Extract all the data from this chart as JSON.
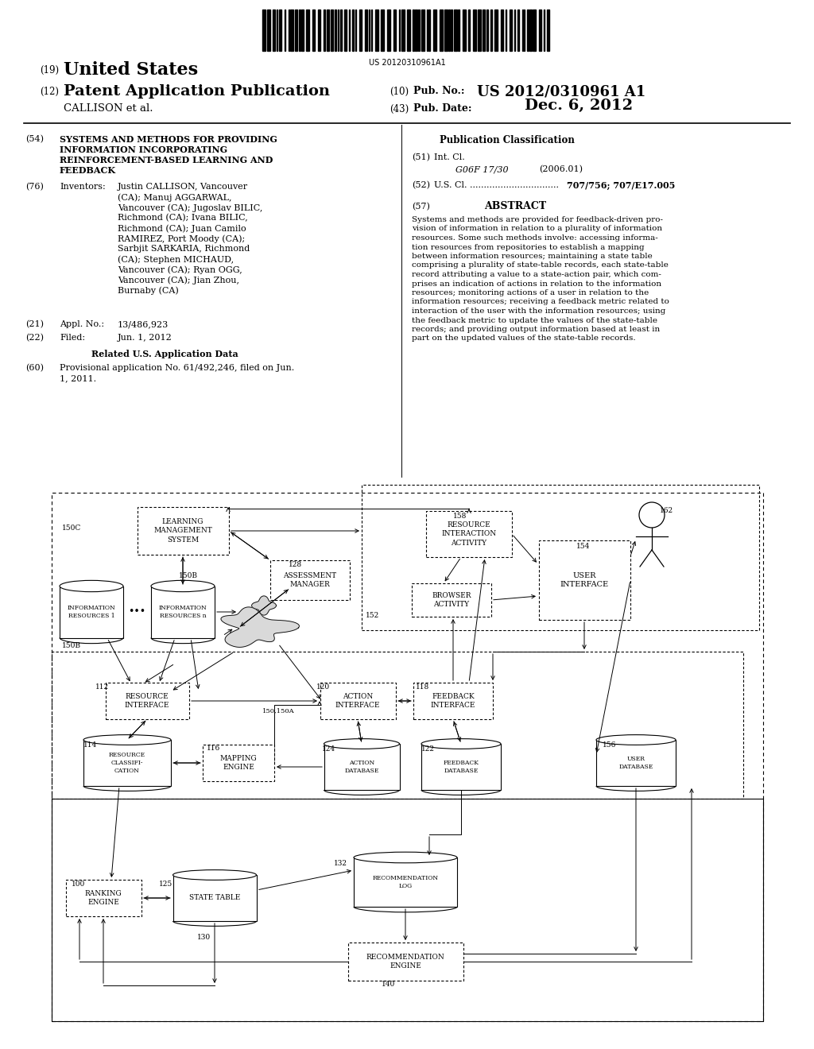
{
  "background_color": "#ffffff",
  "barcode_text": "US 20120310961A1",
  "header": {
    "country": "United States",
    "type": "Patent Application Publication",
    "pub_no": "US 2012/0310961 A1",
    "assignee": "CALLISON et al.",
    "pub_date": "Dec. 6, 2012"
  },
  "left_col": {
    "title": "SYSTEMS AND METHODS FOR PROVIDING\nINFORMATION INCORPORATING\nREINFORCEMENT-BASED LEARNING AND\nFEEDBACK",
    "inventors_text": "Justin CALLISON, Vancouver\n(CA); Manuj AGGARWAL,\nVancouver (CA); Jugoslav BILIC,\nRichmond (CA); Ivana BILIC,\nRichmond (CA); Juan Camilo\nRAMIREZ, Port Moody (CA);\nSarbjit SARKARIA, Richmond\n(CA); Stephen MICHAUD,\nVancouver (CA); Ryan OGG,\nVancouver (CA); Jian Zhou,\nBurnaby (CA)",
    "appl_no": "13/486,923",
    "filed_date": "Jun. 1, 2012",
    "provisional_text": "Provisional application No. 61/492,246, filed on Jun.\n1, 2011."
  },
  "right_col": {
    "intl_cl_code": "G06F 17/30",
    "intl_cl_year": "(2006.01)",
    "us_cl_value": "707/756; 707/E17.005",
    "abstract_text": "Systems and methods are provided for feedback-driven pro-\nvision of information in relation to a plurality of information\nresources. Some such methods involve: accessing informa-\ntion resources from repositories to establish a mapping\nbetween information resources; maintaining a state table\ncomprising a plurality of state-table records, each state-table\nrecord attributing a value to a state-action pair, which com-\nprises an indication of actions in relation to the information\nresources; monitoring actions of a user in relation to the\ninformation resources; receiving a feedback metric related to\ninteraction of the user with the information resources; using\nthe feedback metric to update the values of the state-table\nrecords; and providing output information based at least in\npart on the updated values of the state-table records."
  }
}
